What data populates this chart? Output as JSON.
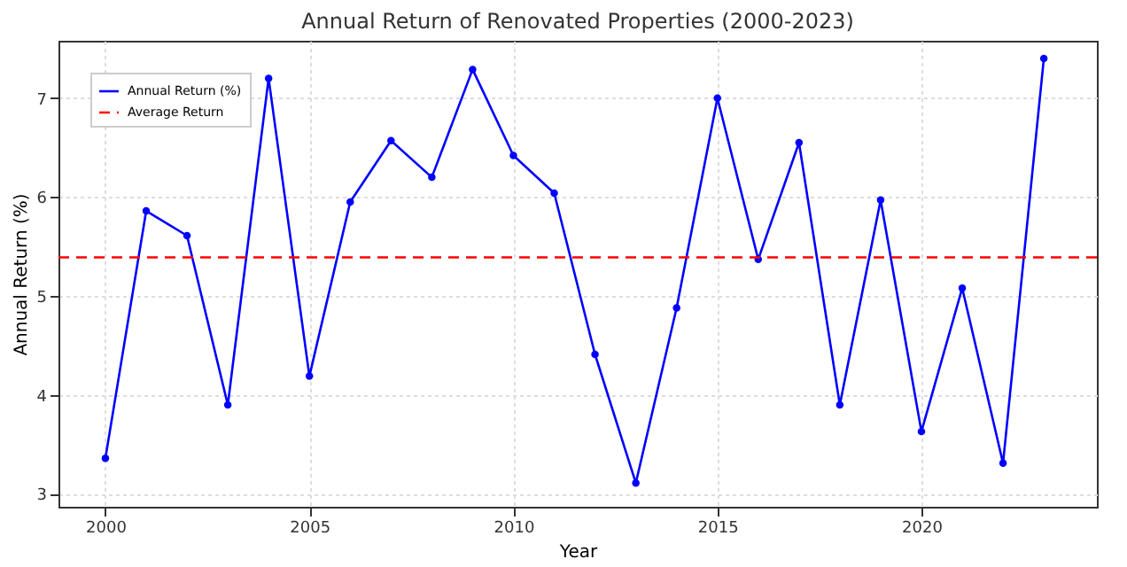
{
  "chart_data": {
    "type": "line",
    "title": "Annual Return of Renovated Properties (2000-2023)",
    "xlabel": "Year",
    "ylabel": "Annual Return (%)",
    "x": [
      2000,
      2001,
      2002,
      2003,
      2004,
      2005,
      2006,
      2007,
      2008,
      2009,
      2010,
      2011,
      2012,
      2013,
      2014,
      2015,
      2016,
      2017,
      2018,
      2019,
      2020,
      2021,
      2022,
      2023
    ],
    "series": [
      {
        "name": "Annual Return (%)",
        "color": "#0000ff",
        "values": [
          3.36,
          5.86,
          5.61,
          3.9,
          7.2,
          4.19,
          5.95,
          6.57,
          6.2,
          7.29,
          6.42,
          6.04,
          4.41,
          3.11,
          4.88,
          7.0,
          5.37,
          6.55,
          3.9,
          5.97,
          3.63,
          5.08,
          3.31,
          7.4
        ]
      }
    ],
    "ref_lines": [
      {
        "axis": "y",
        "value": 5.39,
        "label": "Average Return",
        "color": "#ff0000",
        "line_style": "dashed"
      }
    ],
    "xlim": [
      1998.85,
      2024.3
    ],
    "xticks": [
      2000,
      2005,
      2010,
      2015,
      2020
    ],
    "ylim": [
      2.87,
      7.58
    ],
    "yticks": [
      3,
      4,
      5,
      6,
      7
    ],
    "grid": true,
    "legend": "top left",
    "marker": "circle",
    "line_style": "solid"
  }
}
